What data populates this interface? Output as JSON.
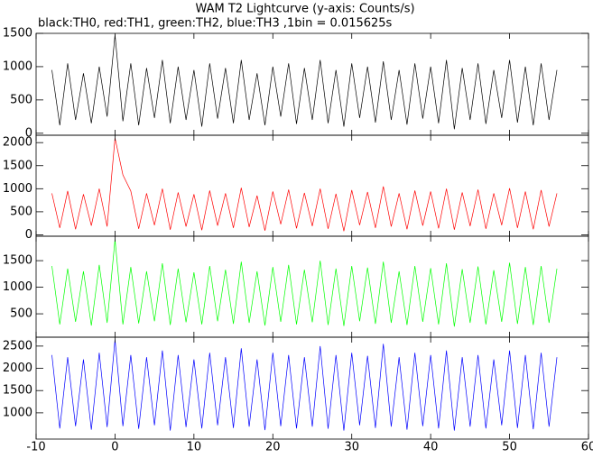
{
  "chart_data": {
    "type": "line",
    "title": "WAM T2 Lightcurve (y-axis: Counts/s)",
    "subtitle": "black:TH0, red:TH1, green:TH2, blue:TH3 ,1bin = 0.015625s",
    "x": [
      -8,
      -7,
      -6,
      -5,
      -4,
      -3,
      -2,
      -1,
      0,
      1,
      2,
      3,
      4,
      5,
      6,
      7,
      8,
      9,
      10,
      11,
      12,
      13,
      14,
      15,
      16,
      17,
      18,
      19,
      20,
      21,
      22,
      23,
      24,
      25,
      26,
      27,
      28,
      29,
      30,
      31,
      32,
      33,
      34,
      35,
      36,
      37,
      38,
      39,
      40,
      41,
      42,
      43,
      44,
      45,
      46,
      47,
      48,
      49,
      50,
      51,
      52,
      53,
      54,
      55,
      56
    ],
    "xlim": [
      -10,
      60
    ],
    "xticks": [
      -10,
      0,
      10,
      20,
      30,
      40,
      50,
      60
    ],
    "panels": [
      {
        "ylim": [
          -30,
          1500
        ],
        "yticks": [
          0,
          500,
          1000,
          1500
        ],
        "series": [
          {
            "color": "#000000",
            "values": [
              950,
              120,
              1050,
              200,
              900,
              150,
              1000,
              250,
              1480,
              180,
              1050,
              120,
              980,
              230,
              1100,
              150,
              1000,
              200,
              950,
              100,
              1050,
              220,
              980,
              150,
              1100,
              200,
              900,
              120,
              1000,
              250,
              1050,
              140,
              980,
              200,
              1100,
              150,
              950,
              100,
              1050,
              230,
              1000,
              160,
              1080,
              200,
              950,
              130,
              1050,
              220,
              1000,
              150,
              1100,
              60,
              980,
              200,
              1050,
              140,
              950,
              230,
              1100,
              160,
              1000,
              120,
              1050,
              200,
              950
            ]
          }
        ]
      },
      {
        "ylim": [
          -30,
          2160
        ],
        "yticks": [
          0,
          500,
          1000,
          1500,
          2000
        ],
        "series": [
          {
            "color": "#ff0000",
            "values": [
              900,
              150,
              950,
              120,
              880,
              200,
              1000,
              180,
              2100,
              1300,
              950,
              130,
              900,
              210,
              1000,
              110,
              920,
              180,
              880,
              100,
              960,
              200,
              900,
              150,
              1020,
              170,
              850,
              90,
              940,
              230,
              980,
              140,
              910,
              190,
              1000,
              130,
              890,
              80,
              970,
              210,
              930,
              150,
              1050,
              180,
              900,
              120,
              960,
              200,
              940,
              140,
              1000,
              110,
              920,
              190,
              980,
              130,
              900,
              210,
              1010,
              150,
              940,
              120,
              970,
              180,
              900
            ]
          }
        ]
      },
      {
        "ylim": [
          60,
          1960
        ],
        "yticks": [
          500,
          1000,
          1500
        ],
        "series": [
          {
            "color": "#00ff00",
            "values": [
              1400,
              300,
              1350,
              350,
              1300,
              280,
              1420,
              330,
              1900,
              300,
              1380,
              320,
              1300,
              360,
              1450,
              290,
              1350,
              340,
              1280,
              300,
              1400,
              360,
              1330,
              310,
              1480,
              330,
              1300,
              280,
              1380,
              350,
              1420,
              300,
              1330,
              340,
              1500,
              290,
              1350,
              270,
              1400,
              360,
              1370,
              310,
              1480,
              330,
              1300,
              290,
              1400,
              350,
              1360,
              300,
              1450,
              260,
              1340,
              330,
              1390,
              300,
              1320,
              350,
              1460,
              310,
              1380,
              290,
              1400,
              330,
              1350
            ]
          }
        ]
      },
      {
        "ylim": [
          410,
          2700
        ],
        "yticks": [
          1000,
          1500,
          2000,
          2500
        ],
        "series": [
          {
            "color": "#0000ff",
            "values": [
              2300,
              650,
              2250,
              700,
              2200,
              620,
              2350,
              680,
              2650,
              700,
              2300,
              640,
              2250,
              720,
              2400,
              600,
              2300,
              680,
              2200,
              650,
              2350,
              720,
              2250,
              660,
              2450,
              690,
              2200,
              610,
              2350,
              700,
              2300,
              650,
              2250,
              690,
              2500,
              640,
              2300,
              600,
              2350,
              720,
              2280,
              660,
              2550,
              690,
              2250,
              620,
              2350,
              700,
              2300,
              650,
              2400,
              600,
              2250,
              690,
              2300,
              650,
              2200,
              720,
              2400,
              660,
              2300,
              630,
              2350,
              690,
              2250
            ]
          }
        ]
      }
    ]
  }
}
